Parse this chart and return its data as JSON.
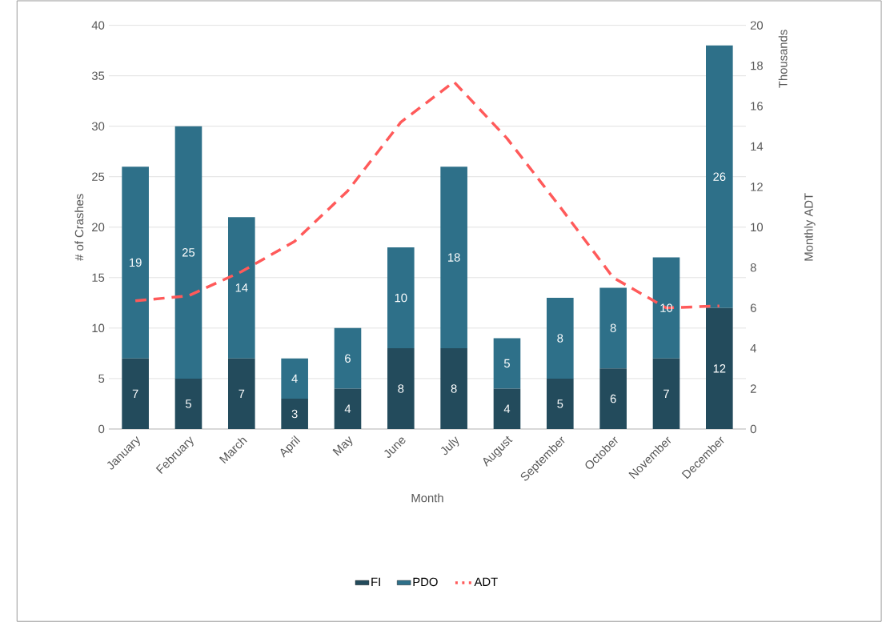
{
  "chart_data": {
    "type": "bar",
    "stacked": true,
    "xlabel": "Month",
    "ylabel": "# of Crashes",
    "y2label": "Monthly ADT",
    "annotations": [
      "Thousands"
    ],
    "categories": [
      "January",
      "February",
      "March",
      "April",
      "May",
      "June",
      "July",
      "August",
      "September",
      "October",
      "November",
      "December"
    ],
    "series": [
      {
        "name": "FI",
        "color": "#234b5c",
        "values": [
          7,
          5,
          7,
          3,
          4,
          8,
          8,
          4,
          5,
          6,
          7,
          12
        ],
        "value_labels": [
          "7",
          "5",
          "7",
          "3",
          "4",
          "8",
          "8",
          "4",
          "5",
          "6",
          "7",
          "12"
        ]
      },
      {
        "name": "PDO",
        "color": "#2e7089",
        "values": [
          19,
          25,
          14,
          4,
          6,
          10,
          18,
          5,
          8,
          8,
          10,
          26
        ],
        "value_labels": [
          "19",
          "25",
          "14",
          "4",
          "6",
          "10",
          "18",
          "5",
          "8",
          "8",
          "10",
          "26"
        ]
      },
      {
        "name": "ADT",
        "type": "line",
        "axis": "y2",
        "line_style": "dashed",
        "marker": "none",
        "color": "#ff5a5a",
        "values": [
          6.35,
          6.6,
          7.8,
          9.3,
          11.8,
          15.2,
          17.2,
          14.4,
          11.0,
          7.5,
          6.0,
          6.1
        ]
      }
    ],
    "ylim": [
      0,
      40
    ],
    "yticks": [
      0,
      5,
      10,
      15,
      20,
      25,
      30,
      35,
      40
    ],
    "y2lim": [
      0,
      20
    ],
    "y2ticks": [
      0,
      2,
      4,
      6,
      8,
      10,
      12,
      14,
      16,
      18,
      20
    ],
    "grid": "y",
    "legend": "bottom"
  }
}
